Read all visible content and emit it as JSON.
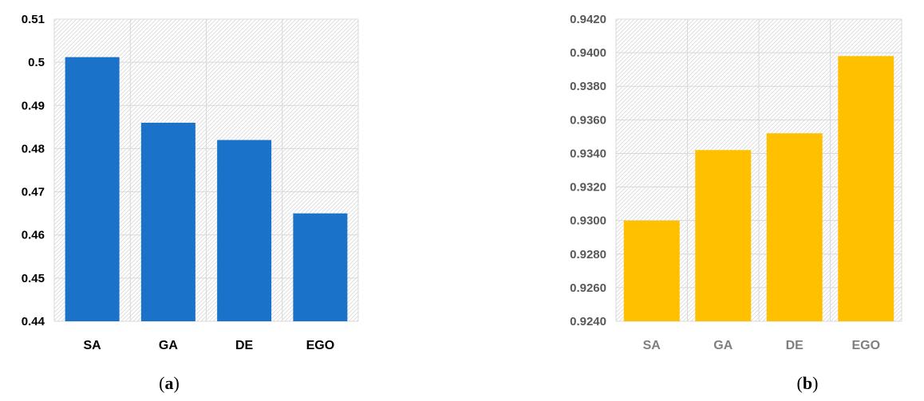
{
  "chart_data": [
    {
      "type": "bar",
      "panel_label": "a",
      "categories": [
        "SA",
        "GA",
        "DE",
        "EGO"
      ],
      "values": [
        0.5012,
        0.486,
        0.482,
        0.465
      ],
      "yticks": [
        "0.44",
        "0.45",
        "0.46",
        "0.47",
        "0.48",
        "0.49",
        "0.5",
        "0.51"
      ],
      "ylim": [
        0.44,
        0.51
      ],
      "grid": true,
      "colors": {
        "bar": "#1a73c9",
        "tick_text": "#000000",
        "category_text": "#000000"
      }
    },
    {
      "type": "bar",
      "panel_label": "b",
      "categories": [
        "SA",
        "GA",
        "DE",
        "EGO"
      ],
      "values": [
        0.93,
        0.9342,
        0.9352,
        0.9398
      ],
      "yticks": [
        "0.9240",
        "0.9260",
        "0.9280",
        "0.9300",
        "0.9320",
        "0.9340",
        "0.9360",
        "0.9380",
        "0.9400",
        "0.9420"
      ],
      "ylim": [
        0.924,
        0.942
      ],
      "grid": true,
      "colors": {
        "bar": "#ffc000",
        "tick_text": "#595959",
        "category_text": "#7f7f7f"
      }
    }
  ]
}
